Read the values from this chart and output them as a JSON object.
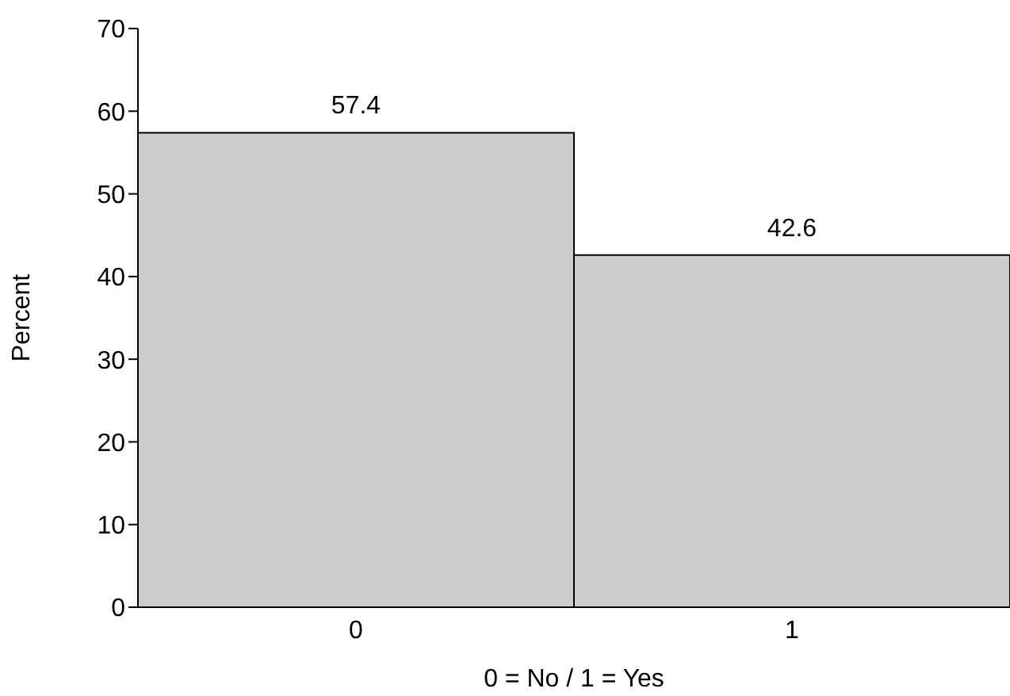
{
  "chart_data": {
    "type": "bar",
    "xlabel": "0 = No / 1 = Yes",
    "ylabel": "Percent",
    "categories": [
      "0",
      "1"
    ],
    "values": [
      57.4,
      42.6
    ],
    "color": "#cccccc",
    "ylim": [
      0,
      70
    ],
    "yticks": [
      0,
      10,
      20,
      30,
      40,
      50,
      60,
      70
    ],
    "data_labels": true,
    "grid": false
  }
}
